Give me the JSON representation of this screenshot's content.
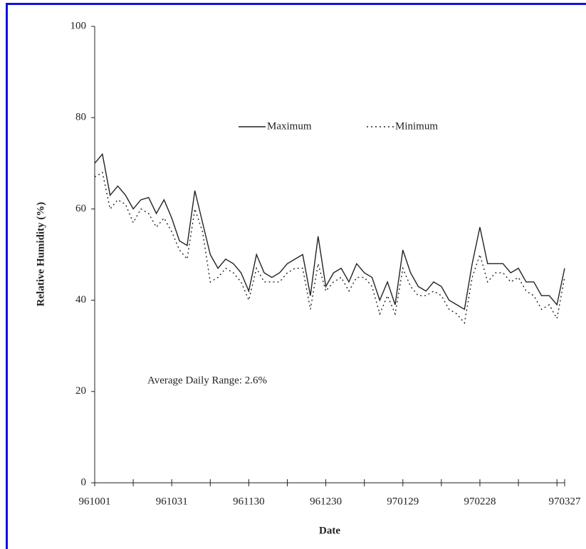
{
  "chart_data": {
    "type": "line",
    "x_label": "Date",
    "y_label": "Relative Humidity (%)",
    "annotation": "Average Daily Range: 2.6%",
    "categories": [
      "961001",
      null,
      null,
      null,
      null,
      null,
      null,
      null,
      null,
      null,
      "961031",
      null,
      null,
      null,
      null,
      null,
      null,
      null,
      null,
      null,
      "961130",
      null,
      null,
      null,
      null,
      null,
      null,
      null,
      null,
      null,
      "961230",
      null,
      null,
      null,
      null,
      null,
      null,
      null,
      null,
      null,
      "970129",
      null,
      null,
      null,
      null,
      null,
      null,
      null,
      null,
      null,
      "970228",
      null,
      null,
      null,
      null,
      null,
      null,
      null,
      null,
      null,
      null,
      "970327"
    ],
    "series": [
      {
        "name": "Maximum",
        "color": "#222222",
        "linestyle": "solid",
        "values": [
          70,
          72,
          63,
          65,
          63,
          60,
          62,
          62.5,
          59,
          62,
          58,
          53,
          52,
          64,
          57,
          50,
          47,
          49,
          48,
          46,
          42,
          50,
          46,
          45,
          46,
          48,
          49,
          50,
          41,
          54,
          43,
          46,
          47,
          44,
          48,
          46,
          45,
          40,
          44,
          39,
          51,
          46,
          43,
          42,
          44,
          43,
          40,
          39,
          38,
          48,
          56,
          48,
          48,
          48,
          46,
          47,
          44,
          44,
          41,
          41,
          39,
          47
        ]
      },
      {
        "name": "Minimum",
        "color": "#222222",
        "linestyle": "dotted",
        "values": [
          67,
          68,
          60,
          62,
          61,
          57,
          60,
          59,
          56,
          58,
          55,
          51,
          49,
          60,
          55,
          44,
          45,
          47,
          46,
          44,
          40,
          47,
          44,
          44,
          44,
          46,
          47,
          47,
          38,
          48,
          42,
          44,
          45,
          42,
          45,
          45,
          43,
          37,
          41,
          37,
          47,
          43,
          41,
          41,
          42,
          41,
          38,
          37,
          35,
          45,
          50,
          44,
          46,
          46,
          44,
          45,
          42,
          41,
          38,
          39,
          36,
          45
        ]
      }
    ],
    "ylim": [
      0,
      100
    ],
    "yticks": [
      0,
      20,
      40,
      60,
      80,
      100
    ],
    "grid": false
  }
}
